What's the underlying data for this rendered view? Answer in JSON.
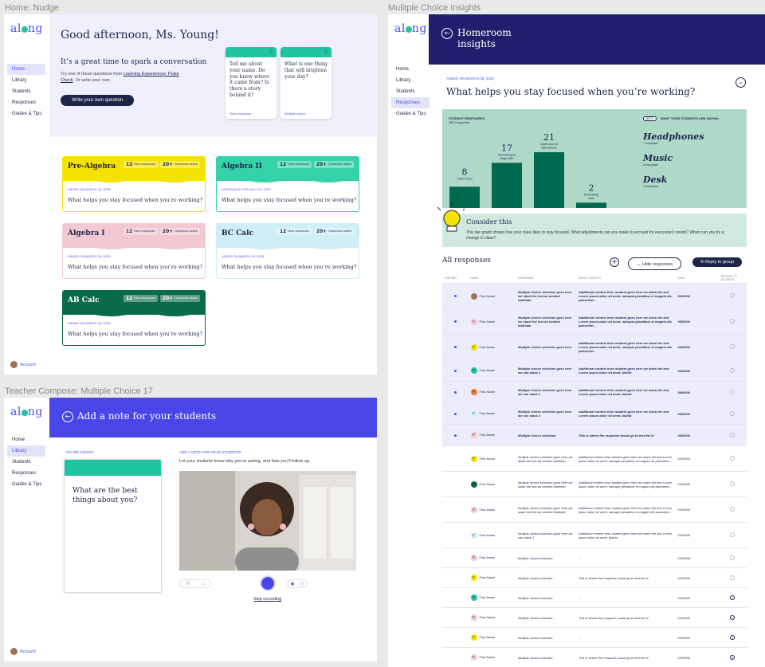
{
  "frames": {
    "home_label": "Home: Nudge",
    "insights_label": "Mulitple Choice Insights",
    "compose_label": "Teacher Compose: Multiple Choice 17"
  },
  "brand": {
    "logo_text_a": "al",
    "logo_text_b": "ng",
    "accent": "#4a4ff0",
    "teal": "#1fc4a0",
    "dark": "#1e2547"
  },
  "nav": {
    "home": "Home",
    "library": "Library",
    "students": "Students",
    "responses": "Responses",
    "guides": "Guides & Tips",
    "account": "Account"
  },
  "home": {
    "greeting": "Good afternoon, Ms. Young!",
    "subhead": "It’s a great time to spark a conversation",
    "try_text_a": "Try one of these questions from ",
    "try_link": "Learning Experiences: Pulse Check",
    "try_text_b": ". Or write your own.",
    "write_button": "Write your own question",
    "suggestions": [
      {
        "question": "Tell me about your name. Do you know where it came from? Is there a story behind it?",
        "type": "Open response"
      },
      {
        "question": "What is one thing that will brighten your day?",
        "type": "Multiple choice"
      }
    ],
    "classes": [
      {
        "name": "Pre-Algebra",
        "color": "#f4e200",
        "new": "12",
        "new_label": "New responses",
        "asked": "20+",
        "asked_label": "Questions asked",
        "date": "ASKED ON MARCH 26, 2023:",
        "question": "What helps you stay focused when you’re working?",
        "text": "#1e2547"
      },
      {
        "name": "Algebra II",
        "color": "#35d1a9",
        "new": "12",
        "new_label": "New responses",
        "asked": "20+",
        "asked_label": "Questions asked",
        "date": "SCHEDULED FOR JULY 27, 2023",
        "question": "What helps you stay focused when you’re working?",
        "text": "#1e2547"
      },
      {
        "name": "Algebra I",
        "color": "#f2c9d2",
        "new": "12",
        "new_label": "New responses",
        "asked": "20+",
        "asked_label": "Questions asked",
        "date": "ASKED ON MARCH 26, 2023:",
        "question": "What helps you stay focused when you’re working?",
        "text": "#1e2547"
      },
      {
        "name": "BC Calc",
        "color": "#cdeff5",
        "new": "12",
        "new_label": "New responses",
        "asked": "20+",
        "asked_label": "Questions asked",
        "date": "ASKED ON MARCH 26, 2023:",
        "question": "What helps you stay focused when you’re working?",
        "text": "#1e2547"
      },
      {
        "name": "AB Calc",
        "color": "#0a6b4b",
        "new": "12",
        "new_label": "New responses",
        "asked": "20+",
        "asked_label": "Questions asked",
        "date": "ASKED ON MARCH 26, 2023:",
        "question": "What helps you stay focused when you’re working?",
        "text": "#ffffff"
      }
    ]
  },
  "insights": {
    "title_line1": "Homeroom",
    "title_line2": "insights",
    "asked_on": "ASKED ON MARCH 26, 2023",
    "question": "What helps you stay focused when you’re working?",
    "student_responses": "STUDENT RESPONSES:",
    "responded": "28/14 responded",
    "beta": "BETA",
    "what_saying": "WHAT YOUR STUDENTS ARE SAYING:",
    "words": [
      {
        "word": "Headphones",
        "count": "7 responses"
      },
      {
        "word": "Music",
        "count": "6 responses"
      },
      {
        "word": "Desk",
        "count": "4 responses"
      }
    ],
    "consider_title": "Consider this",
    "consider_text": "This bar graph shows how your class likes to stay focused. What adjustments can you make to account for everyone’s needs? When can you try a change in class?",
    "all_responses": "All responses",
    "hide_button": "Hide responses",
    "reply_button": "Reply to group",
    "columns": [
      "UNREAD",
      "NAME",
      "RESPONSE",
      "MORE CONTEXT",
      "DATE",
      "REPLIED TO STUDENT"
    ],
    "rows": [
      {
        "unread": true,
        "ini": "",
        "ic": "#a07254",
        "name": "First-Name",
        "resp": "Multiple choice selection goes here we stack the text as needed blahblah",
        "ctx": "Additional context from student goes here we stack the text Lorem ipsum dolor sit amet, natoque penatibus et magnis dis parturient...",
        "date": "00/00/00",
        "replied": false
      },
      {
        "unread": true,
        "ini": "F",
        "ic": "#f2c9d2",
        "name": "First-Name",
        "resp": "Multiple choice selection goes here we stack the text as needed blahblah",
        "ctx": "Additional context from student goes here we stack the text Lorem ipsum dolor sit amet, natoque penatibus et magnis dis parturient...",
        "date": "00/00/00",
        "replied": false
      },
      {
        "unread": true,
        "ini": "F",
        "ic": "#f4e200",
        "name": "First-Name",
        "resp": "Multiple choice selection goes here",
        "ctx": "Additional context from student goes here we stack the text Lorem ipsum dolor sit amet, natoque penatibus et magnis dis parturient...",
        "date": "00/00/00",
        "replied": false
      },
      {
        "unread": true,
        "ini": "F",
        "ic": "#1fc4a0",
        "name": "First-Name",
        "resp": "Multiple choice selection goes here we can stack 2",
        "ctx": "Additional context from student goes here we stack the text Lorem ipsum dolor sit amet, blahbl",
        "date": "00/00/00",
        "replied": false
      },
      {
        "unread": true,
        "ini": "F",
        "ic": "#f07a2a",
        "name": "First-Name",
        "resp": "Multiple choice selection goes here we can stack 2",
        "ctx": "Additional context from student goes here we stack the text Lorem ipsum dolor sit amet, blahbl",
        "date": "00/00/00",
        "replied": false
      },
      {
        "unread": true,
        "ini": "F",
        "ic": "#cdeff5",
        "name": "First-Name",
        "resp": "Multiple choice selection goes here we can stack 2",
        "ctx": "Additional context from student goes here we stack the text Lorem ipsum dolor sit amet, blahbl",
        "date": "00/00/00",
        "replied": false
      },
      {
        "unread": true,
        "ini": "F",
        "ic": "#f2c9d2",
        "name": "First-Name",
        "resp": "Multiple choice selection",
        "ctx": "This is where the response would go to test the le",
        "date": "00/00/00",
        "replied": false
      },
      {
        "unread": false,
        "ini": "F",
        "ic": "#f4e200",
        "name": "First-Name",
        "resp": "Multiple choice selection goes here we stack the text as needed blahblah",
        "ctx": "Additional context from student goes here we stack the text Lorem ipsum dolor sit amet, natoque penatibus et magnis dis parturient...",
        "date": "00/00/00",
        "replied": false
      },
      {
        "unread": false,
        "ini": "F",
        "ic": "#0a6b4b",
        "name": "First-Name",
        "resp": "Multiple choice selection goes here we stack the text as needed blahblah",
        "ctx": "Additional context from student goes here we stack the text Lorem ipsum dolor sit amet, natoque penatibus et magnis dis parturient...",
        "date": "00/00/00",
        "replied": false
      },
      {
        "unread": false,
        "ini": "F",
        "ic": "#f2c9d2",
        "name": "First-Name",
        "resp": "Multiple choice selection goes here we stack the text as needed blahblah",
        "ctx": "Additional context from student goes here we stack the text Lorem ipsum dolor sit amet, natoque penatibus et magnis dis parturient...",
        "date": "00/00/00",
        "replied": false
      },
      {
        "unread": false,
        "ini": "F",
        "ic": "#cdeff5",
        "name": "First-Name",
        "resp": "Multiple choice selection goes here we can stack 2",
        "ctx": "Additional context from student goes here we stack the text Lorem ipsum dolor sit amet, blahbl",
        "date": "00/00/00",
        "replied": false
      },
      {
        "unread": false,
        "ini": "F",
        "ic": "#f2c9d2",
        "name": "First-Name",
        "resp": "Multiple choice selection",
        "ctx": "--",
        "date": "00/00/00",
        "replied": false
      },
      {
        "unread": false,
        "ini": "F",
        "ic": "#f4e200",
        "name": "First-Name",
        "resp": "Multiple choice selection",
        "ctx": "This is where the response would go to test the le",
        "date": "00/00/00",
        "replied": false
      },
      {
        "unread": false,
        "ini": "F",
        "ic": "#1fc4a0",
        "name": "First-Name",
        "resp": "Multiple choice selection",
        "ctx": "--",
        "date": "00/00/00",
        "replied": true
      },
      {
        "unread": false,
        "ini": "F",
        "ic": "#f2c9d2",
        "name": "First-Name",
        "resp": "Multiple choice selection",
        "ctx": "This is where the response would go to test the le",
        "date": "00/00/00",
        "replied": true
      },
      {
        "unread": false,
        "ini": "F",
        "ic": "#f4e200",
        "name": "First-Name",
        "resp": "Multiple choice selection",
        "ctx": "--",
        "date": "00/00/00",
        "replied": true
      },
      {
        "unread": false,
        "ini": "F",
        "ic": "#f2c9d2",
        "name": "First-Name",
        "resp": "Multiple choice selection",
        "ctx": "This is where the response would go to test the le",
        "date": "00/00/00",
        "replied": true
      }
    ]
  },
  "chart_data": {
    "type": "bar",
    "categories": [
      "Calm music",
      "Something to fidget with",
      "Quiet and no distractions",
      "Something else"
    ],
    "values": [
      8,
      17,
      21,
      2
    ],
    "ylim": [
      0,
      21
    ]
  },
  "compose": {
    "title": "Add a note for your students",
    "youre_asking": "YOU’RE ASKING:",
    "question": "What are the best things about you?",
    "add_note": "ADD A NOTE FOR YOUR STUDENTS:",
    "note_sub": "Let your students know why you’re asking, and how you’ll follow up.",
    "skip": "Skip recording"
  }
}
